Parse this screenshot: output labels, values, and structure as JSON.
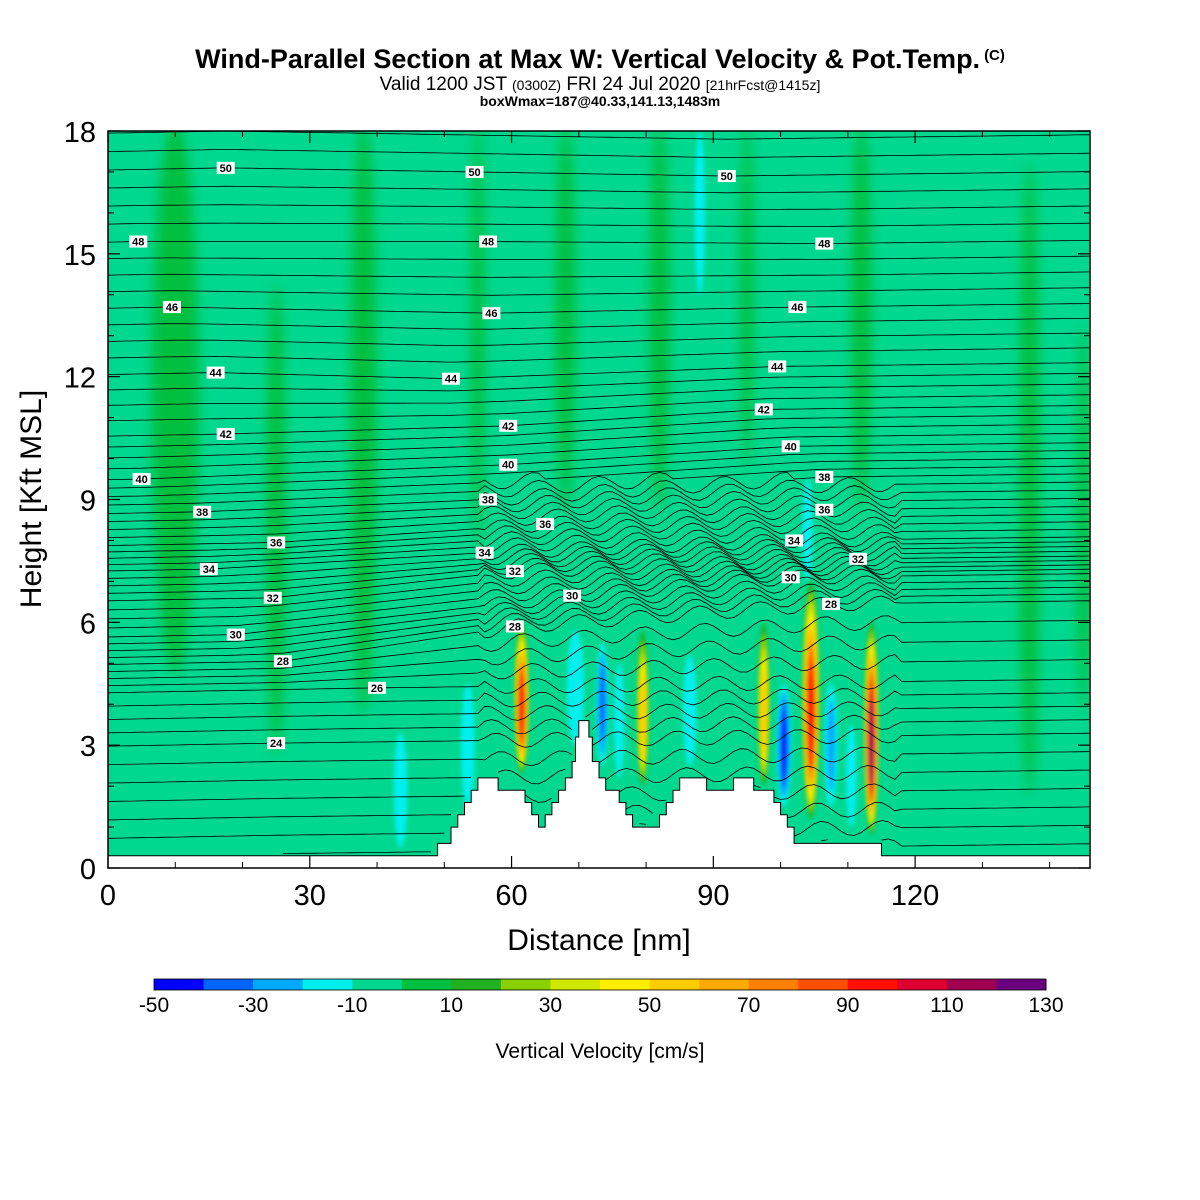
{
  "title": {
    "main": "Wind-Parallel Section at Max W: Vertical Velocity & Pot.Temp.",
    "copyright": "(C)",
    "valid_prefix": "Valid 1200 JST",
    "zulu": "(0300Z)",
    "valid_date": "FRI 24 Jul 2020",
    "forecast": "[21hrFcst@1415z]",
    "box_info": "boxWmax=187@40.33,141.13,1483m"
  },
  "colors": {
    "background_fill": "#00d890",
    "contour_line": "#000000",
    "terrain": "#ffffff"
  },
  "chart_data": {
    "type": "heatmap",
    "xlabel": "Distance [nm]",
    "ylabel": "Height [Kft MSL]",
    "xlim": [
      0,
      146
    ],
    "ylim": [
      0,
      18
    ],
    "x_ticks": [
      0,
      30,
      60,
      90,
      120
    ],
    "y_ticks": [
      0,
      3,
      6,
      9,
      12,
      15,
      18
    ],
    "colorbar": {
      "label": "Vertical Velocity [cm/s]",
      "tick_labels": [
        "-50",
        "-30",
        "-10",
        "10",
        "30",
        "50",
        "70",
        "90",
        "110",
        "130"
      ],
      "bins": [
        {
          "from": -50,
          "to": -40,
          "color": "#0000ff"
        },
        {
          "from": -40,
          "to": -30,
          "color": "#0066ff"
        },
        {
          "from": -30,
          "to": -20,
          "color": "#00aaff"
        },
        {
          "from": -20,
          "to": -10,
          "color": "#00f0f0"
        },
        {
          "from": -10,
          "to": 0,
          "color": "#00d890"
        },
        {
          "from": 0,
          "to": 10,
          "color": "#00c040"
        },
        {
          "from": 10,
          "to": 20,
          "color": "#20b020"
        },
        {
          "from": 20,
          "to": 30,
          "color": "#88d000"
        },
        {
          "from": 30,
          "to": 40,
          "color": "#d0e800"
        },
        {
          "from": 40,
          "to": 50,
          "color": "#ffee00"
        },
        {
          "from": 50,
          "to": 60,
          "color": "#ffcc00"
        },
        {
          "from": 60,
          "to": 70,
          "color": "#ffaa00"
        },
        {
          "from": 70,
          "to": 80,
          "color": "#ff8000"
        },
        {
          "from": 80,
          "to": 90,
          "color": "#ff5000"
        },
        {
          "from": 90,
          "to": 100,
          "color": "#ff1000"
        },
        {
          "from": 100,
          "to": 110,
          "color": "#dd0030"
        },
        {
          "from": 110,
          "to": 120,
          "color": "#a00050"
        },
        {
          "from": 120,
          "to": 130,
          "color": "#6a0080"
        }
      ]
    },
    "updraft_cores": [
      {
        "x": 61.5,
        "base": 2.3,
        "top": 6.0,
        "w": 2.2,
        "max": 100
      },
      {
        "x": 79.5,
        "base": 2.0,
        "top": 5.8,
        "w": 1.8,
        "max": 60
      },
      {
        "x": 97.5,
        "base": 2.0,
        "top": 6.0,
        "w": 1.8,
        "max": 60
      },
      {
        "x": 104.5,
        "base": 1.2,
        "top": 7.0,
        "w": 2.6,
        "max": 100
      },
      {
        "x": 113.5,
        "base": 0.8,
        "top": 6.0,
        "w": 2.2,
        "max": 120
      }
    ],
    "downdraft_cores": [
      {
        "x": 43.5,
        "base": 0.5,
        "top": 3.3,
        "w": 2.0,
        "min": -20
      },
      {
        "x": 53.5,
        "base": 1.5,
        "top": 4.5,
        "w": 2.0,
        "min": -20
      },
      {
        "x": 69.5,
        "base": 3.0,
        "top": 5.8,
        "w": 2.5,
        "min": -20
      },
      {
        "x": 73.5,
        "base": 2.5,
        "top": 5.5,
        "w": 1.8,
        "min": -40
      },
      {
        "x": 76.0,
        "base": 2.2,
        "top": 5.0,
        "w": 1.5,
        "min": -20
      },
      {
        "x": 86.5,
        "base": 2.5,
        "top": 5.2,
        "w": 2.0,
        "min": -20
      },
      {
        "x": 100.5,
        "base": 1.5,
        "top": 4.5,
        "w": 2.2,
        "min": -50
      },
      {
        "x": 107.5,
        "base": 1.5,
        "top": 4.5,
        "w": 2.0,
        "min": -30
      },
      {
        "x": 110.5,
        "base": 1.0,
        "top": 3.5,
        "w": 1.5,
        "min": -20
      },
      {
        "x": 104.0,
        "base": 7.0,
        "top": 9.5,
        "w": 1.5,
        "min": -20
      },
      {
        "x": 88.0,
        "base": 14.0,
        "top": 18.0,
        "w": 1.5,
        "min": -20
      }
    ],
    "weak_updraft_bands": [
      {
        "x": 10,
        "base": 5.0,
        "top": 18,
        "w": 7
      },
      {
        "x": 25,
        "base": 3.0,
        "top": 14,
        "w": 3
      },
      {
        "x": 38,
        "base": 4.0,
        "top": 18,
        "w": 4
      },
      {
        "x": 55,
        "base": 8.0,
        "top": 18,
        "w": 2
      },
      {
        "x": 68,
        "base": 9.0,
        "top": 18,
        "w": 3
      },
      {
        "x": 82,
        "base": 9.0,
        "top": 18,
        "w": 3
      },
      {
        "x": 95,
        "base": 10.0,
        "top": 18,
        "w": 2
      },
      {
        "x": 112,
        "base": 9.0,
        "top": 18,
        "w": 3
      },
      {
        "x": 137,
        "base": 2.0,
        "top": 17,
        "w": 3
      },
      {
        "x": 145,
        "base": 4.0,
        "top": 13,
        "w": 2
      }
    ],
    "terrain_profile": [
      [
        0,
        0.3
      ],
      [
        49,
        0.3
      ],
      [
        49,
        0.6
      ],
      [
        51,
        0.6
      ],
      [
        51,
        1.0
      ],
      [
        52,
        1.0
      ],
      [
        52,
        1.3
      ],
      [
        53,
        1.3
      ],
      [
        53,
        1.6
      ],
      [
        54,
        1.6
      ],
      [
        54,
        1.9
      ],
      [
        55,
        1.9
      ],
      [
        55,
        2.2
      ],
      [
        58,
        2.2
      ],
      [
        58,
        1.9
      ],
      [
        62,
        1.9
      ],
      [
        62,
        1.6
      ],
      [
        63,
        1.6
      ],
      [
        63,
        1.3
      ],
      [
        64,
        1.3
      ],
      [
        64,
        1.0
      ],
      [
        65,
        1.0
      ],
      [
        65,
        1.3
      ],
      [
        66,
        1.3
      ],
      [
        66,
        1.6
      ],
      [
        67,
        1.6
      ],
      [
        67,
        1.9
      ],
      [
        68,
        1.9
      ],
      [
        68,
        2.2
      ],
      [
        69,
        2.2
      ],
      [
        69,
        2.6
      ],
      [
        69.5,
        2.6
      ],
      [
        69.5,
        3.2
      ],
      [
        70,
        3.2
      ],
      [
        70,
        3.6
      ],
      [
        71.5,
        3.6
      ],
      [
        71.5,
        3.2
      ],
      [
        72,
        3.2
      ],
      [
        72,
        2.6
      ],
      [
        73,
        2.6
      ],
      [
        73,
        2.2
      ],
      [
        74,
        2.2
      ],
      [
        74,
        1.9
      ],
      [
        76,
        1.9
      ],
      [
        76,
        1.6
      ],
      [
        77,
        1.6
      ],
      [
        77,
        1.3
      ],
      [
        78,
        1.3
      ],
      [
        78,
        1.0
      ],
      [
        82,
        1.0
      ],
      [
        82,
        1.3
      ],
      [
        83,
        1.3
      ],
      [
        83,
        1.6
      ],
      [
        84,
        1.6
      ],
      [
        84,
        1.9
      ],
      [
        85,
        1.9
      ],
      [
        85,
        2.2
      ],
      [
        89,
        2.2
      ],
      [
        89,
        1.9
      ],
      [
        93,
        1.9
      ],
      [
        93,
        2.2
      ],
      [
        96,
        2.2
      ],
      [
        96,
        1.9
      ],
      [
        99,
        1.9
      ],
      [
        99,
        1.6
      ],
      [
        100,
        1.6
      ],
      [
        100,
        1.3
      ],
      [
        101,
        1.3
      ],
      [
        101,
        1.0
      ],
      [
        102,
        1.0
      ],
      [
        102,
        0.6
      ],
      [
        115,
        0.6
      ],
      [
        115,
        0.3
      ],
      [
        146,
        0.3
      ]
    ],
    "isentropes": [
      {
        "value": 24,
        "mx": 25,
        "my": 3.05
      },
      {
        "value": 26,
        "mx": 40,
        "my": 4.4
      },
      {
        "value": 28,
        "mx": 26,
        "my": 5.05
      },
      {
        "value": 28,
        "mx": 60.5,
        "my": 5.9
      },
      {
        "value": 28,
        "mx": 107.5,
        "my": 6.45
      },
      {
        "value": 30,
        "mx": 19,
        "my": 5.7
      },
      {
        "value": 30,
        "mx": 69,
        "my": 6.65
      },
      {
        "value": 30,
        "mx": 101.5,
        "my": 7.1
      },
      {
        "value": 32,
        "mx": 24.5,
        "my": 6.6
      },
      {
        "value": 32,
        "mx": 60.5,
        "my": 7.25
      },
      {
        "value": 32,
        "mx": 111.5,
        "my": 7.55
      },
      {
        "value": 34,
        "mx": 15,
        "my": 7.3
      },
      {
        "value": 34,
        "mx": 56,
        "my": 7.7
      },
      {
        "value": 34,
        "mx": 102,
        "my": 8.0
      },
      {
        "value": 36,
        "mx": 25,
        "my": 7.95
      },
      {
        "value": 36,
        "mx": 65,
        "my": 8.4
      },
      {
        "value": 36,
        "mx": 106.5,
        "my": 8.75
      },
      {
        "value": 38,
        "mx": 14,
        "my": 8.7
      },
      {
        "value": 38,
        "mx": 56.5,
        "my": 9.0
      },
      {
        "value": 38,
        "mx": 106.5,
        "my": 9.55
      },
      {
        "value": 40,
        "mx": 5,
        "my": 9.5
      },
      {
        "value": 40,
        "mx": 59.5,
        "my": 9.85
      },
      {
        "value": 40,
        "mx": 101.5,
        "my": 10.3
      },
      {
        "value": 42,
        "mx": 17.5,
        "my": 10.6
      },
      {
        "value": 42,
        "mx": 59.5,
        "my": 10.8
      },
      {
        "value": 42,
        "mx": 97.5,
        "my": 11.2
      },
      {
        "value": 44,
        "mx": 16,
        "my": 12.1
      },
      {
        "value": 44,
        "mx": 51,
        "my": 11.95
      },
      {
        "value": 44,
        "mx": 99.5,
        "my": 12.25
      },
      {
        "value": 46,
        "mx": 9.5,
        "my": 13.7
      },
      {
        "value": 46,
        "mx": 57,
        "my": 13.55
      },
      {
        "value": 46,
        "mx": 102.5,
        "my": 13.7
      },
      {
        "value": 48,
        "mx": 4.5,
        "my": 15.3
      },
      {
        "value": 48,
        "mx": 56.5,
        "my": 15.3
      },
      {
        "value": 48,
        "mx": 106.5,
        "my": 15.25
      },
      {
        "value": 50,
        "mx": 17.5,
        "my": 17.1
      },
      {
        "value": 50,
        "mx": 54.5,
        "my": 17.0
      },
      {
        "value": 50,
        "mx": 92,
        "my": 16.9
      }
    ]
  }
}
